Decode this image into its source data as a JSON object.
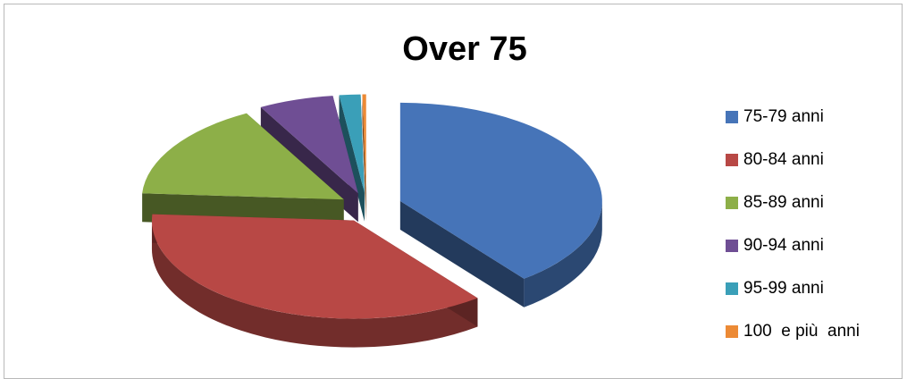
{
  "chart_data": {
    "type": "pie",
    "title": "Over 75",
    "categories": [
      "75-79 anni",
      "80-84 anni",
      "85-89 anni",
      "90-94 anni",
      "95-99 anni",
      "100  e più  anni"
    ],
    "values": [
      39.5,
      36.5,
      16.0,
      6.0,
      1.7,
      0.3
    ],
    "colors": [
      "#4674b8",
      "#b84845",
      "#8daf48",
      "#6f4e94",
      "#3a9fb8",
      "#ec8a35"
    ],
    "legend": "right",
    "style": "3d-exploded"
  }
}
